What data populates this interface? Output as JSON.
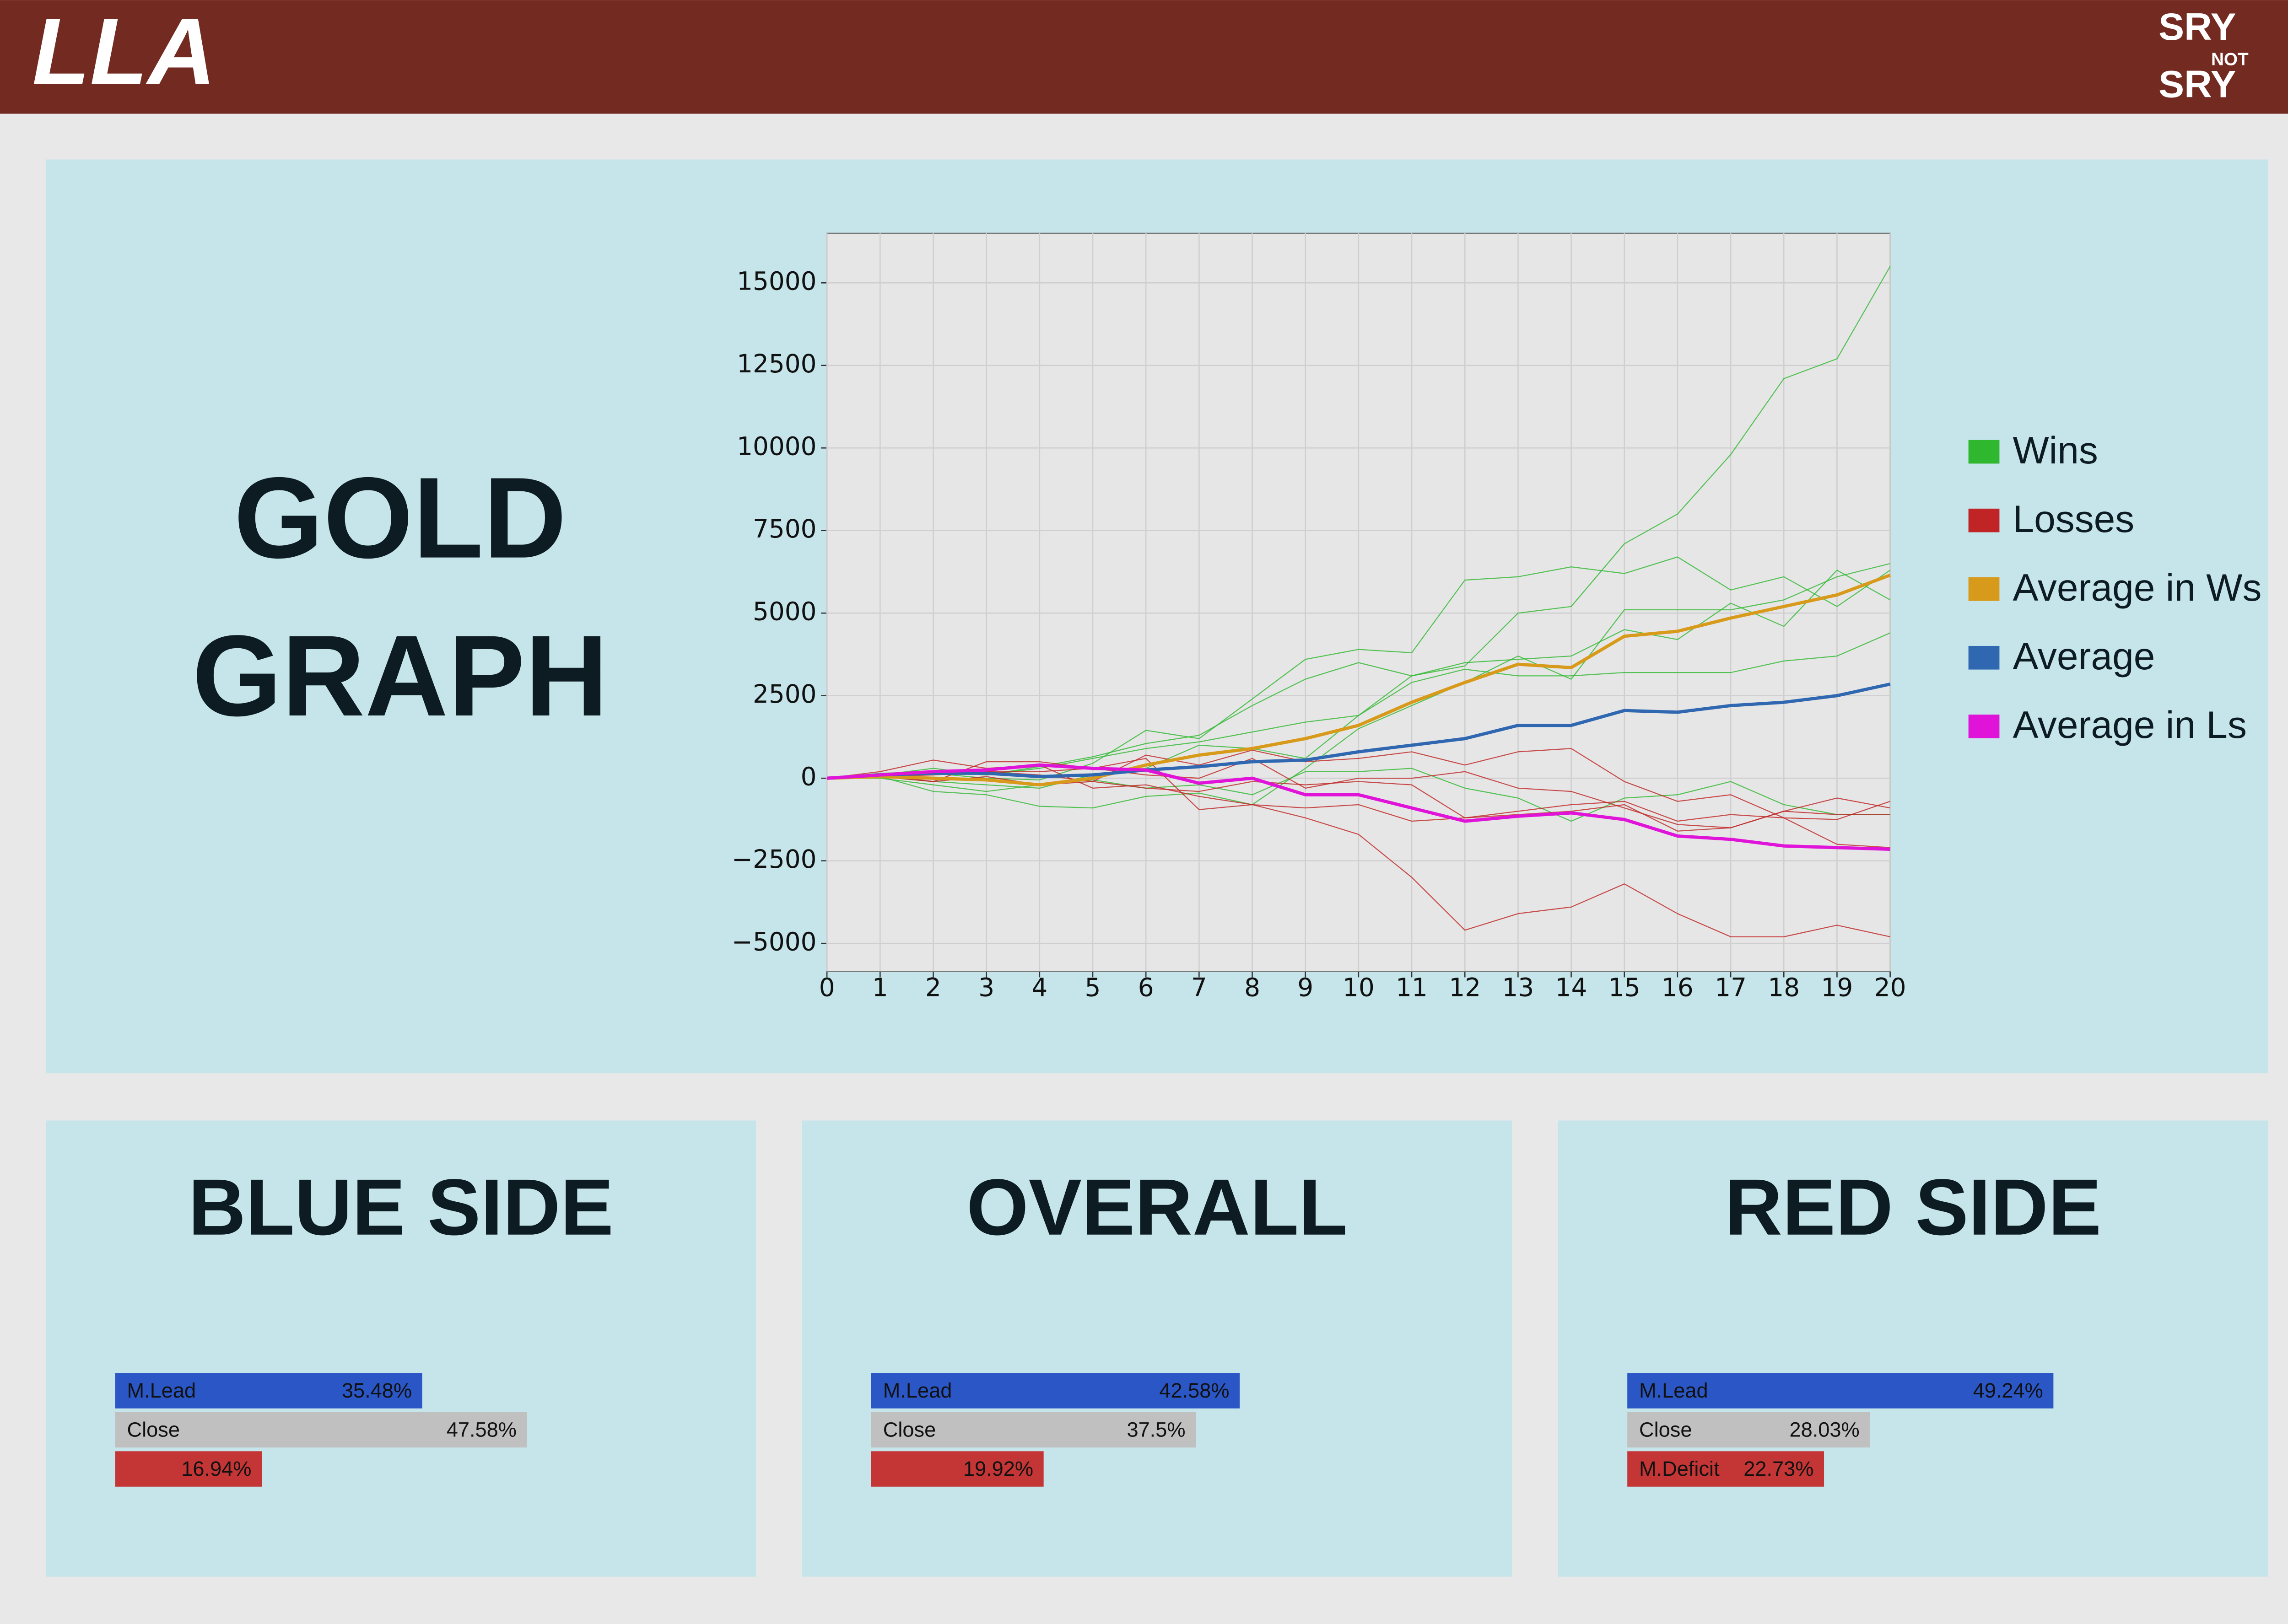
{
  "header": {
    "left_logo": "LLA",
    "right_logo": [
      "SRY",
      "NOT",
      "SRY"
    ]
  },
  "chart_data": [
    {
      "type": "line",
      "title": [
        "GOLD",
        "GRAPH"
      ],
      "x": [
        0,
        1,
        2,
        3,
        4,
        5,
        6,
        7,
        8,
        9,
        10,
        11,
        12,
        13,
        14,
        15,
        16,
        17,
        18,
        19,
        20
      ],
      "xlim": [
        0,
        20
      ],
      "xticks": [
        0,
        1,
        2,
        3,
        4,
        5,
        6,
        7,
        8,
        9,
        10,
        11,
        12,
        13,
        14,
        15,
        16,
        17,
        18,
        19,
        20
      ],
      "ylim": [
        -5850,
        16500
      ],
      "yticks": [
        {
          "value": -5000,
          "label": "−5000"
        },
        {
          "value": -2500,
          "label": "−2500"
        },
        0,
        2500,
        5000,
        7500,
        10000,
        12500,
        15000
      ],
      "grid": true,
      "legend": "right",
      "series": [
        {
          "name": "Wins",
          "color": "#2fb82f",
          "values": [
            [
              0,
              150,
              200,
              100,
              350,
              650,
              1050,
              1300,
              2200,
              3000,
              3500,
              3100,
              3400,
              5000,
              5200,
              7100,
              8000,
              9800,
              12100,
              12700,
              15500
            ],
            [
              0,
              100,
              150,
              0,
              -50,
              450,
              1450,
              1200,
              2400,
              3600,
              3900,
              3800,
              6000,
              6100,
              6400,
              6200,
              6700,
              5700,
              6100,
              5200,
              6300
            ],
            [
              0,
              50,
              -100,
              -200,
              -300,
              100,
              300,
              1000,
              900,
              600,
              1900,
              3100,
              3500,
              3600,
              3700,
              4500,
              4200,
              5300,
              4600,
              6300,
              5400
            ],
            [
              0,
              50,
              -400,
              -500,
              -850,
              -900,
              -550,
              -450,
              -800,
              300,
              1500,
              2200,
              2900,
              3700,
              3000,
              5100,
              5100,
              5100,
              5400,
              6100,
              6500
            ],
            [
              0,
              100,
              300,
              100,
              300,
              600,
              900,
              1100,
              1400,
              1700,
              1900,
              2900,
              3300,
              3100,
              3100,
              3200,
              3200,
              3200,
              3550,
              3700,
              4400
            ],
            [
              0,
              0,
              -200,
              -400,
              -200,
              -50,
              -300,
              -200,
              -500,
              200,
              200,
              300,
              -300,
              -600,
              -1300,
              -600,
              -500,
              -100,
              -800,
              -1100,
              -1100
            ]
          ]
        },
        {
          "name": "Losses",
          "color": "#c02424",
          "values": [
            [
              0,
              200,
              550,
              300,
              400,
              -300,
              -200,
              -550,
              -800,
              -900,
              -800,
              -1300,
              -1200,
              -1100,
              -1000,
              -800,
              -1600,
              -1500,
              -1000,
              -1100,
              -1100
            ],
            [
              0,
              100,
              -100,
              500,
              500,
              300,
              600,
              -950,
              -800,
              -1200,
              -1700,
              -3000,
              -4600,
              -4100,
              -3900,
              -3200,
              -4100,
              -4800,
              -4800,
              -4450,
              -4800
            ],
            [
              0,
              100,
              200,
              200,
              100,
              -100,
              700,
              400,
              850,
              500,
              600,
              800,
              400,
              800,
              900,
              -100,
              -700,
              -500,
              -1200,
              -1250,
              -700
            ],
            [
              0,
              50,
              100,
              200,
              200,
              300,
              100,
              0,
              600,
              -300,
              0,
              0,
              200,
              -300,
              -400,
              -900,
              -1400,
              -1500,
              -1000,
              -600,
              -900
            ],
            [
              0,
              50,
              -100,
              50,
              -200,
              -100,
              -300,
              -400,
              -100,
              -200,
              -100,
              -200,
              -1200,
              -1000,
              -800,
              -700,
              -1300,
              -1100,
              -1200,
              -2000,
              -2100
            ]
          ]
        },
        {
          "name": "Average in Ws",
          "color": "#d89a1a",
          "values": [
            0,
            50,
            0,
            -50,
            -200,
            0,
            400,
            700,
            900,
            1200,
            1600,
            2300,
            2900,
            3450,
            3350,
            4300,
            4450,
            4850,
            5200,
            5550,
            6150
          ]
        },
        {
          "name": "Average",
          "color": "#2f67b0",
          "values": [
            0,
            100,
            150,
            150,
            50,
            100,
            250,
            350,
            500,
            550,
            800,
            1000,
            1200,
            1600,
            1600,
            2050,
            2000,
            2200,
            2300,
            2500,
            2850
          ]
        },
        {
          "name": "Average in Ls",
          "color": "#e014d8",
          "values": [
            0,
            100,
            200,
            250,
            400,
            300,
            250,
            -150,
            0,
            -500,
            -500,
            -900,
            -1300,
            -1150,
            -1050,
            -1250,
            -1750,
            -1850,
            -2050,
            -2100,
            -2150
          ]
        }
      ]
    },
    {
      "type": "hbar",
      "title": "BLUE SIDE",
      "categories": [
        "M.Lead",
        "Close",
        null
      ],
      "values": [
        35.48,
        47.58,
        16.94
      ],
      "value_labels": [
        "35.48%",
        "47.58%",
        "16.94%"
      ],
      "colors": [
        "#2a56c6",
        "#c0c0c0",
        "#c43535"
      ]
    },
    {
      "type": "hbar",
      "title": "OVERALL",
      "categories": [
        "M.Lead",
        "Close",
        null
      ],
      "values": [
        42.58,
        37.5,
        19.92
      ],
      "value_labels": [
        "42.58%",
        "37.5%",
        "19.92%"
      ],
      "colors": [
        "#2a56c6",
        "#c0c0c0",
        "#c43535"
      ]
    },
    {
      "type": "hbar",
      "title": "RED SIDE",
      "categories": [
        "M.Lead",
        "Close",
        "M.Deficit"
      ],
      "values": [
        49.24,
        28.03,
        22.73
      ],
      "value_labels": [
        "49.24%",
        "28.03%",
        "22.73%"
      ],
      "colors": [
        "#2a56c6",
        "#c0c0c0",
        "#c43535"
      ]
    }
  ]
}
